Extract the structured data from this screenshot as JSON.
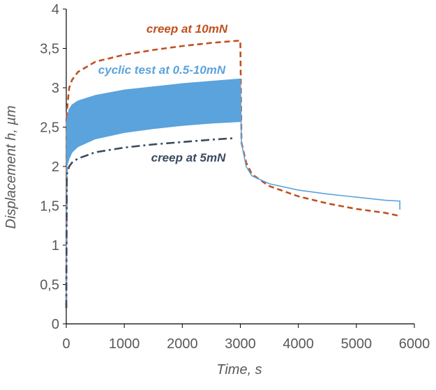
{
  "chart_data": {
    "type": "line",
    "xlabel": "Time, s",
    "ylabel": "Displacement h, µm",
    "xlim": [
      0,
      6000
    ],
    "xticks": [
      0,
      1000,
      2000,
      3000,
      4000,
      5000,
      6000
    ],
    "ylim": [
      0,
      4
    ],
    "yticks": [
      0,
      {
        "value": 0.5,
        "label": "0,5"
      },
      1,
      {
        "value": 1.5,
        "label": "1,5"
      },
      2,
      {
        "value": 2.5,
        "label": "2,5"
      },
      3,
      {
        "value": 3.5,
        "label": "3,5"
      },
      4
    ],
    "grid": false,
    "series": [
      {
        "name": "creep at 10mN",
        "color": "#c0501f",
        "line_style": "dashed",
        "x": [
          0,
          10,
          50,
          100,
          200,
          500,
          1000,
          1500,
          2000,
          2500,
          3000,
          3020,
          3100,
          3200,
          3500,
          4000,
          4500,
          5000,
          5500,
          5750
        ],
        "values": [
          0.2,
          2.7,
          3.0,
          3.1,
          3.2,
          3.33,
          3.42,
          3.48,
          3.53,
          3.57,
          3.6,
          2.3,
          2.05,
          1.9,
          1.75,
          1.62,
          1.53,
          1.46,
          1.41,
          1.37
        ]
      },
      {
        "name": "cyclic test at 0.5-10mN",
        "color": "#5ba3dc",
        "line_style": "solid",
        "x": [
          0,
          10,
          50,
          100,
          200,
          500,
          1000,
          1500,
          2000,
          2500,
          3000,
          3020,
          3100,
          3200,
          3500,
          4000,
          4500,
          5000,
          5500,
          5750,
          5750
        ],
        "values": [
          0.2,
          2.6,
          2.72,
          2.78,
          2.83,
          2.9,
          2.97,
          3.01,
          3.05,
          3.08,
          3.11,
          2.3,
          2.0,
          1.88,
          1.78,
          1.7,
          1.65,
          1.61,
          1.57,
          1.56,
          1.45
        ],
        "lower": [
          0.2,
          2.0,
          2.1,
          2.18,
          2.25,
          2.35,
          2.43,
          2.48,
          2.52,
          2.55,
          2.57,
          null,
          null,
          null,
          null,
          null,
          null,
          null,
          null,
          null,
          null
        ]
      },
      {
        "name": "creep at 5mN",
        "color": "#3b4a5e",
        "line_style": "dashdot",
        "x": [
          0,
          10,
          50,
          100,
          200,
          500,
          1000,
          1500,
          2000,
          2500,
          2900
        ],
        "values": [
          0.2,
          1.9,
          2.0,
          2.05,
          2.1,
          2.18,
          2.24,
          2.28,
          2.31,
          2.34,
          2.36
        ]
      }
    ]
  }
}
